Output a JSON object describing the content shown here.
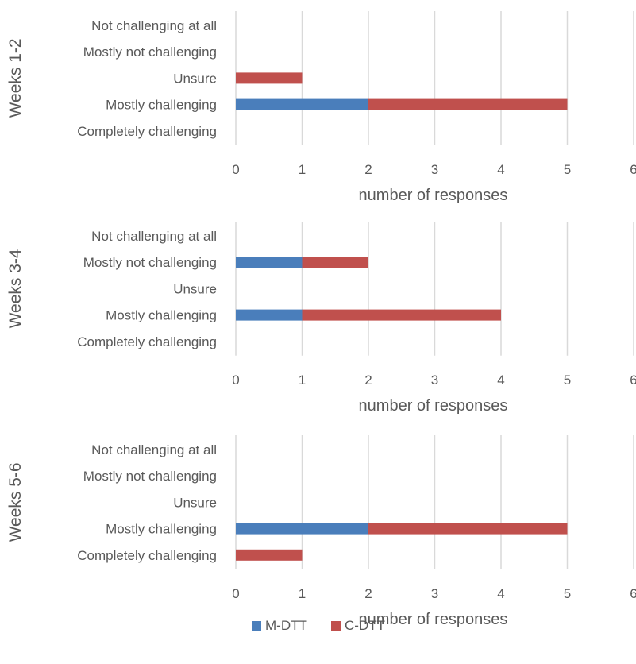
{
  "chart_data": {
    "type": "stacked-horizontal-bar",
    "categories": [
      "Not challenging at all",
      "Mostly not challenging",
      "Unsure",
      "Mostly challenging",
      "Completely challenging"
    ],
    "legend": [
      {
        "name": "M-DTT",
        "color": "#4a7ebb"
      },
      {
        "name": "C-DTT",
        "color": "#c0504d"
      }
    ],
    "legend_position": "bottom",
    "grid": "vertical",
    "panels": [
      {
        "group_label": "Weeks 1-2",
        "xlabel": "number of responses",
        "xlim": [
          0,
          6
        ],
        "x_ticks": [
          "0",
          "1",
          "2",
          "3",
          "4",
          "5",
          "6"
        ],
        "series": [
          {
            "name": "M-DTT",
            "values": [
              0,
              0,
              0,
              2,
              0
            ]
          },
          {
            "name": "C-DTT",
            "values": [
              0,
              0,
              1,
              3,
              0
            ]
          }
        ]
      },
      {
        "group_label": "Weeks 3-4",
        "xlabel": "number of responses",
        "xlim": [
          0,
          6
        ],
        "x_ticks": [
          "0",
          "1",
          "2",
          "3",
          "4",
          "5",
          "6"
        ],
        "series": [
          {
            "name": "M-DTT",
            "values": [
              0,
              1,
              0,
              1,
              0
            ]
          },
          {
            "name": "C-DTT",
            "values": [
              0,
              1,
              0,
              3,
              0
            ]
          }
        ]
      },
      {
        "group_label": "Weeks 5-6",
        "xlabel": "number of responses",
        "xlim": [
          0,
          6
        ],
        "x_ticks": [
          "0",
          "1",
          "2",
          "3",
          "4",
          "5",
          "6"
        ],
        "series": [
          {
            "name": "M-DTT",
            "values": [
              0,
              0,
              0,
              2,
              0
            ]
          },
          {
            "name": "C-DTT",
            "values": [
              0,
              0,
              0,
              3,
              1
            ]
          }
        ]
      }
    ]
  }
}
